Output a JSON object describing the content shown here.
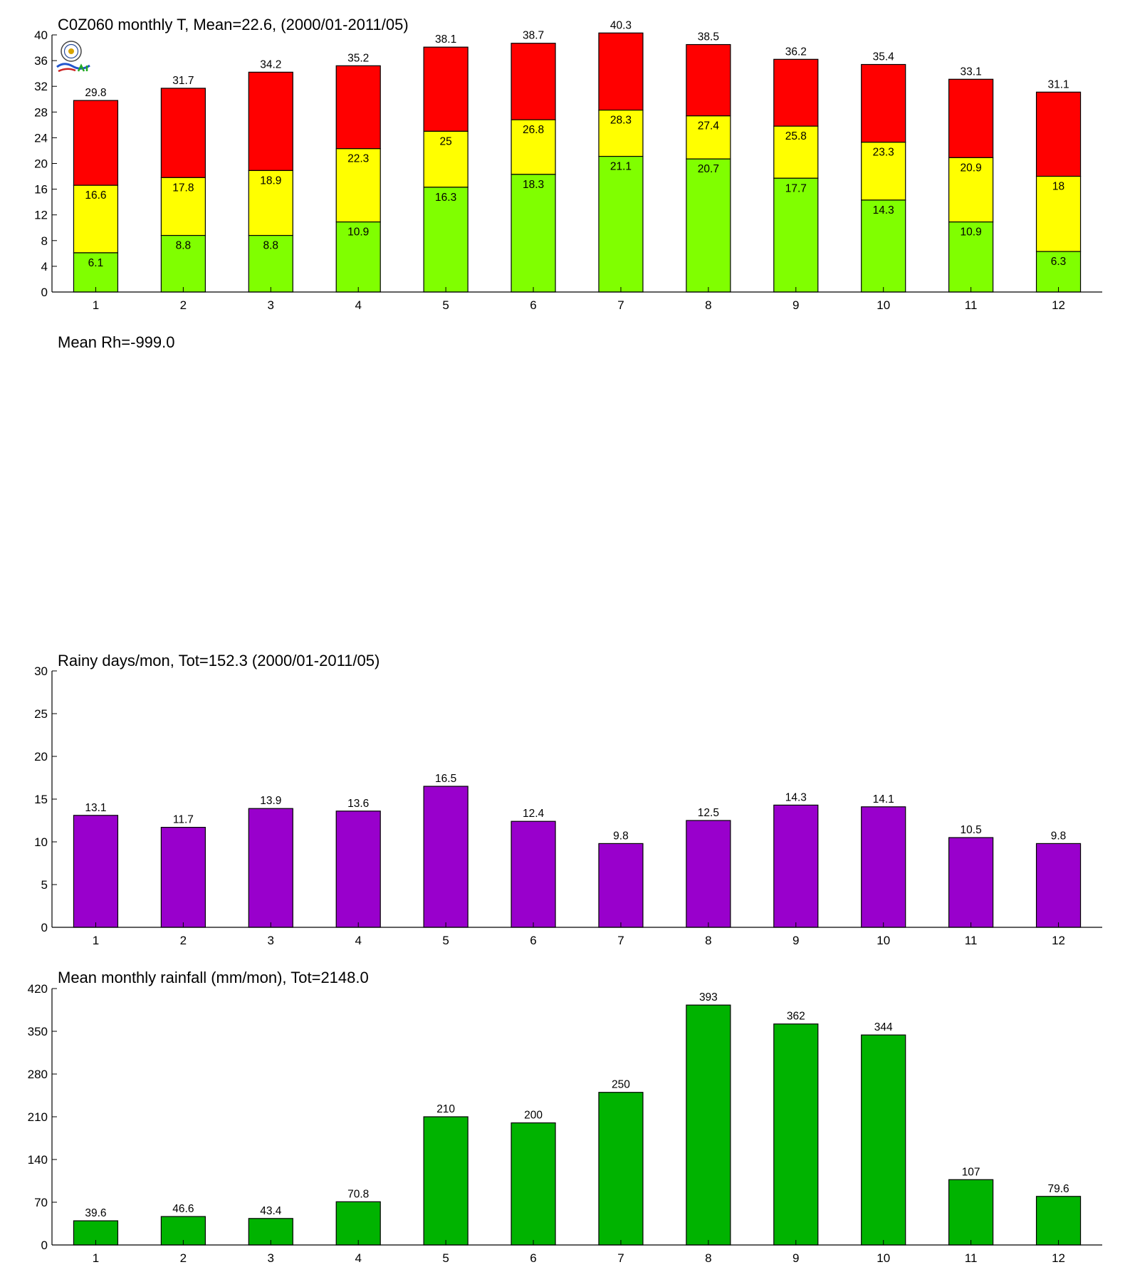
{
  "panels": {
    "temperature": {
      "title": "C0Z060 monthly T, Mean=22.6, (2000/01-2011/05)"
    },
    "humidity": {
      "title": "Mean Rh=-999.0"
    },
    "rainy_days": {
      "title": "Rainy days/mon, Tot=152.3 (2000/01-2011/05)"
    },
    "rainfall": {
      "title": "Mean monthly rainfall (mm/mon), Tot=2148.0"
    }
  },
  "logo": {
    "icon": "seal-emblem-icon"
  },
  "chart_data": [
    {
      "type": "bar",
      "stacked": true,
      "title": "C0Z060 monthly T, Mean=22.6, (2000/01-2011/05)",
      "xlabel": "",
      "ylabel": "",
      "categories": [
        "1",
        "2",
        "3",
        "4",
        "5",
        "6",
        "7",
        "8",
        "9",
        "10",
        "11",
        "12"
      ],
      "ylim": [
        0,
        40
      ],
      "yticks": [
        0,
        4,
        8,
        12,
        16,
        20,
        24,
        28,
        32,
        36,
        40
      ],
      "grid": false,
      "levels": [
        {
          "values": [
            6.1,
            8.8,
            8.8,
            10.9,
            16.3,
            18.3,
            21.1,
            20.7,
            17.7,
            14.3,
            10.9,
            6.3
          ],
          "color": "#80ff00"
        },
        {
          "values": [
            16.6,
            17.8,
            18.9,
            22.3,
            25,
            26.8,
            28.3,
            27.4,
            25.8,
            23.3,
            20.9,
            18
          ],
          "color": "#ffff00"
        },
        {
          "values": [
            29.8,
            31.7,
            34.2,
            35.2,
            38.1,
            38.7,
            40.3,
            38.5,
            36.2,
            35.4,
            33.1,
            31.1
          ],
          "color": "#ff0000"
        }
      ]
    },
    {
      "type": "bar",
      "title": "Rainy days/mon, Tot=152.3 (2000/01-2011/05)",
      "xlabel": "",
      "ylabel": "",
      "categories": [
        "1",
        "2",
        "3",
        "4",
        "5",
        "6",
        "7",
        "8",
        "9",
        "10",
        "11",
        "12"
      ],
      "values": [
        13.1,
        11.7,
        13.9,
        13.6,
        16.5,
        12.4,
        9.8,
        12.5,
        14.3,
        14.1,
        10.5,
        9.8
      ],
      "ylim": [
        0,
        30
      ],
      "yticks": [
        0,
        5,
        10,
        15,
        20,
        25,
        30
      ],
      "grid": false,
      "color": "#9900cc"
    },
    {
      "type": "bar",
      "title": "Mean monthly rainfall (mm/mon), Tot=2148.0",
      "xlabel": "",
      "ylabel": "",
      "categories": [
        "1",
        "2",
        "3",
        "4",
        "5",
        "6",
        "7",
        "8",
        "9",
        "10",
        "11",
        "12"
      ],
      "values": [
        39.6,
        46.6,
        43.4,
        70.8,
        210,
        200,
        250,
        393,
        362,
        344,
        107,
        79.6
      ],
      "ylim": [
        0,
        420
      ],
      "yticks": [
        0,
        70,
        140,
        210,
        280,
        350,
        420
      ],
      "grid": false,
      "color": "#00b300"
    }
  ]
}
